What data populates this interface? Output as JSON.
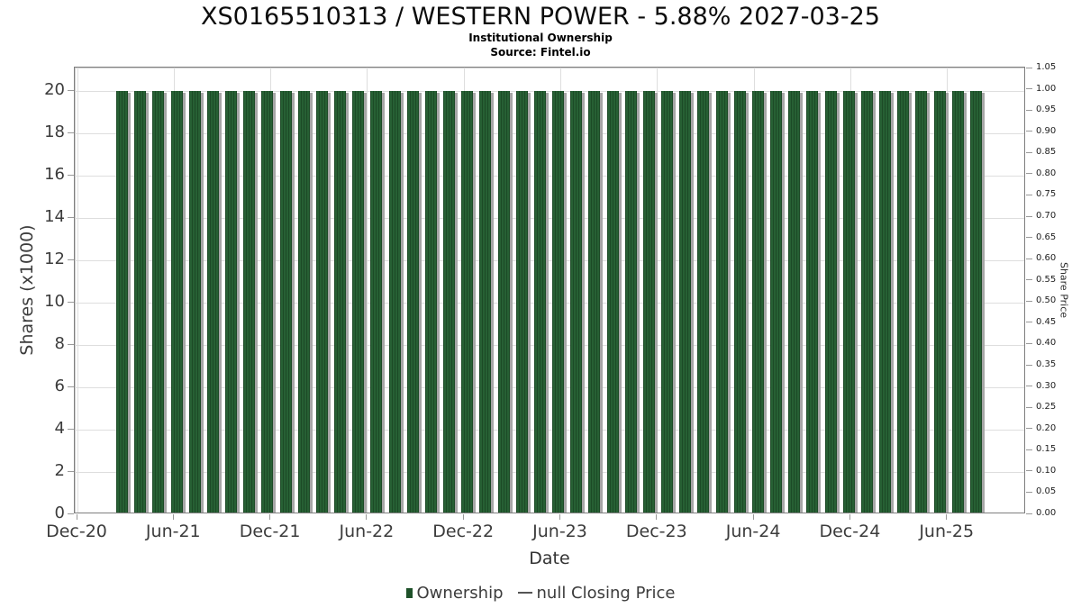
{
  "title": "XS0165510313 / WESTERN POWER - 5.88% 2027-03-25",
  "subtitle": "Institutional Ownership",
  "source": "Source: Fintel.io",
  "colors": {
    "bar": "#276034",
    "bar_dark": "#1c4a26",
    "bar_solid": "#1e5129",
    "bar_shadow": "#a6a6a6",
    "grid": "#dedede",
    "border": "#7f7f7f",
    "tick": "#9a9a9a",
    "legend_line": "#555555"
  },
  "chart_data": {
    "type": "bar",
    "title": "XS0165510313 / WESTERN POWER - 5.88% 2027-03-25",
    "subtitle": "Institutional Ownership",
    "source": "Source: Fintel.io",
    "xlabel": "Date",
    "ylabel_left": "Shares (x1000)",
    "ylabel_right": "Share Price",
    "grid": true,
    "legend_position": "bottom",
    "x_ticks": [
      "Dec-20",
      "Jun-21",
      "Dec-21",
      "Jun-22",
      "Dec-22",
      "Jun-23",
      "Dec-23",
      "Jun-24",
      "Dec-24",
      "Jun-25"
    ],
    "left_ticks": [
      0,
      2,
      4,
      6,
      8,
      10,
      12,
      14,
      16,
      18,
      20
    ],
    "right_ticks": [
      "0.00",
      "0.05",
      "0.10",
      "0.15",
      "0.20",
      "0.25",
      "0.30",
      "0.35",
      "0.40",
      "0.45",
      "0.50",
      "0.55",
      "0.60",
      "0.65",
      "0.70",
      "0.75",
      "0.80",
      "0.85",
      "0.90",
      "0.95",
      "1.00",
      "1.05"
    ],
    "ylim_left": [
      0,
      21.1
    ],
    "ylim_right": [
      0,
      1.05
    ],
    "x_range_months": [
      "Feb-21",
      "Sep-25"
    ],
    "series": [
      {
        "name": "Ownership",
        "unit": "shares_x1000",
        "values": [
          20,
          20,
          20,
          20,
          20,
          20,
          20,
          20,
          20,
          20,
          20,
          20,
          20,
          20,
          20,
          20,
          20,
          20,
          20,
          20,
          20,
          20,
          20,
          20,
          20,
          20,
          20,
          20,
          20,
          20,
          20,
          20,
          20,
          20,
          20,
          20,
          20,
          20,
          20,
          20,
          20,
          20,
          20,
          20,
          20,
          20,
          20,
          20
        ]
      },
      {
        "name": "null Closing Price",
        "unit": "share_price",
        "values": []
      }
    ],
    "legend": [
      {
        "label": "Ownership",
        "type": "bar"
      },
      {
        "label": "null Closing Price",
        "type": "line"
      }
    ]
  }
}
